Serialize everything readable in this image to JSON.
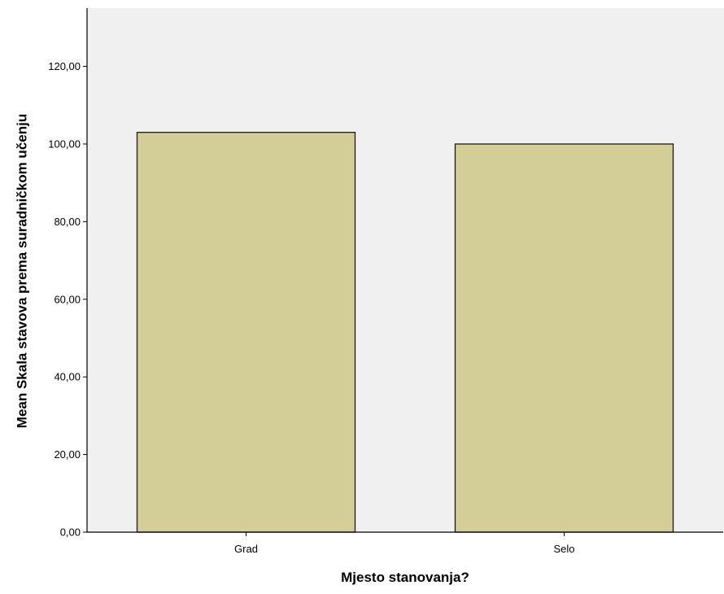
{
  "chart_data": {
    "type": "bar",
    "title": "",
    "xlabel": "Mjesto stanovanja?",
    "ylabel": "Mean Skala stavova prema suradničkom učenju",
    "categories": [
      "Grad",
      "Selo"
    ],
    "values": [
      103,
      100
    ],
    "ylim": [
      0,
      135
    ],
    "yticks": [
      "0,00",
      "20,00",
      "40,00",
      "60,00",
      "80,00",
      "100,00",
      "120,00"
    ],
    "ytick_values": [
      0,
      20,
      40,
      60,
      80,
      100,
      120
    ],
    "grid": false,
    "legend": "none",
    "colors": {
      "plot_background": "#f0f0f0",
      "bar_fill": "#d3ce97",
      "bar_stroke": "#1a1a1a",
      "axis": "#000000"
    }
  }
}
